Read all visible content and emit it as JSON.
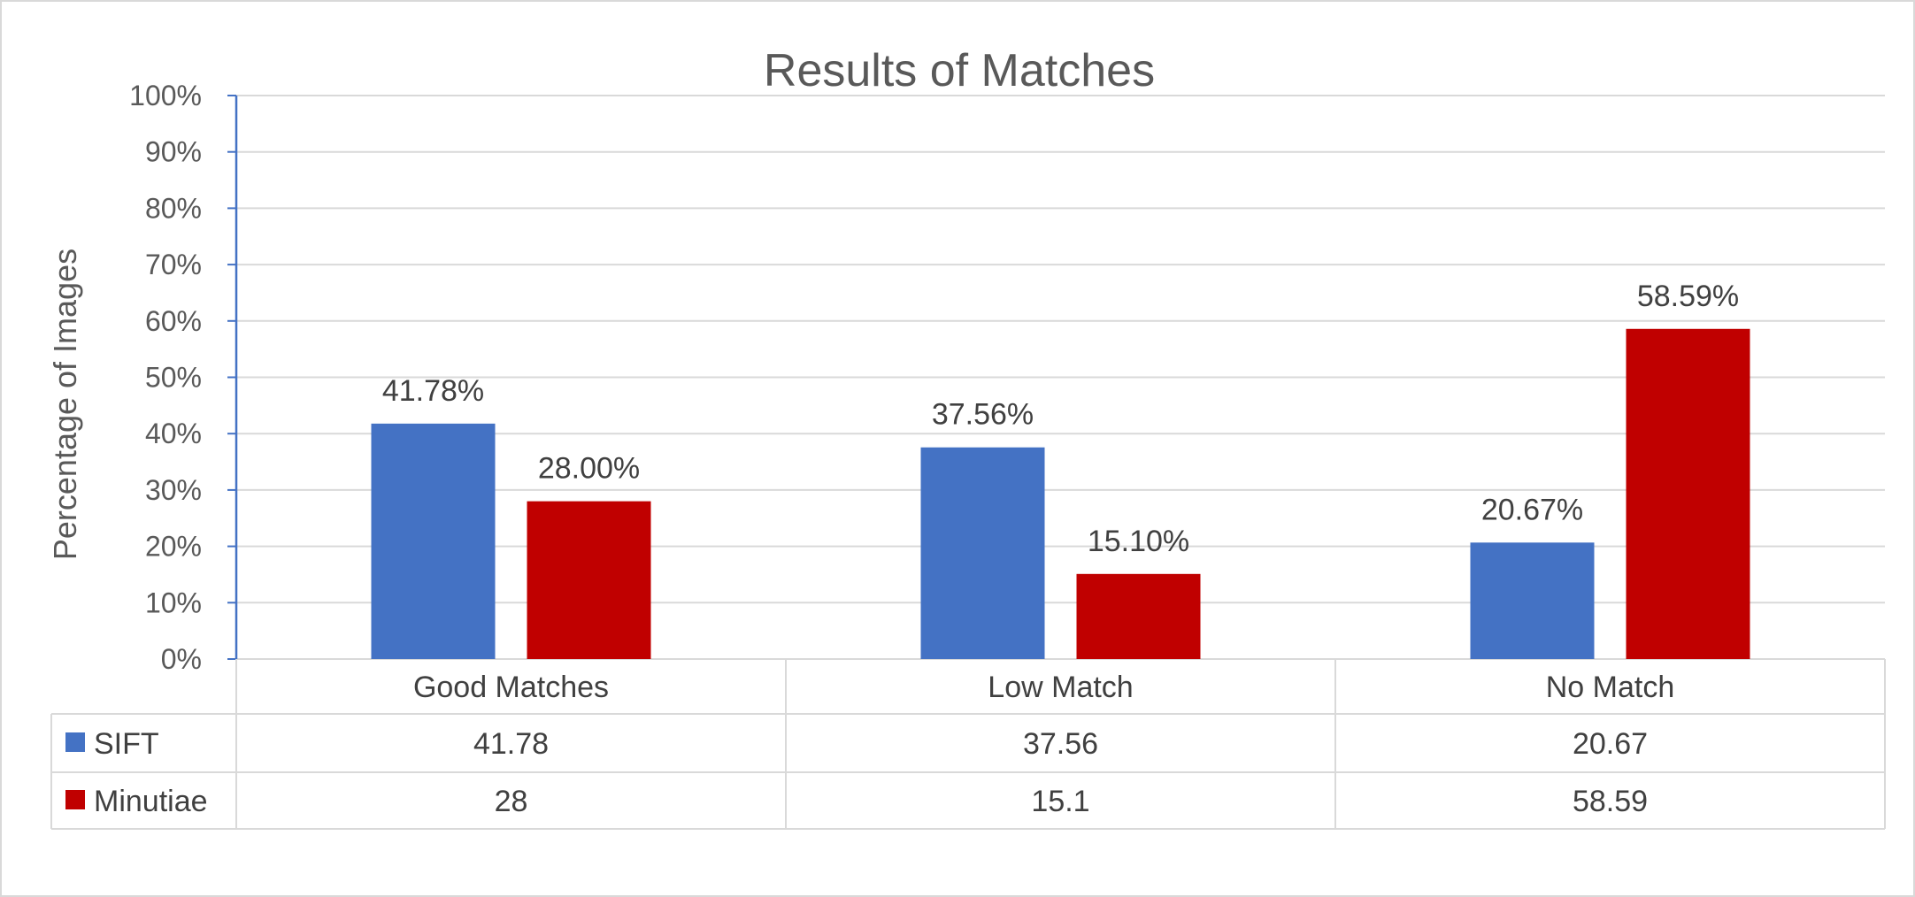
{
  "chart_data": {
    "type": "bar",
    "title": "Results of Matches",
    "ylabel": "Percentage of Images",
    "xlabel": "",
    "categories": [
      "Good Matches",
      "Low Match",
      "No Match"
    ],
    "ylim": [
      0,
      100
    ],
    "yticks": [
      "0%",
      "10%",
      "20%",
      "30%",
      "40%",
      "50%",
      "60%",
      "70%",
      "80%",
      "90%",
      "100%"
    ],
    "grid": true,
    "legend": "data-table-left",
    "series": [
      {
        "name": "SIFT",
        "color": "#4472c4",
        "values": [
          41.78,
          37.56,
          20.67
        ],
        "data_labels": [
          "41.78%",
          "37.56%",
          "20.67%"
        ],
        "table_values": [
          "41.78",
          "37.56",
          "20.67"
        ]
      },
      {
        "name": "Minutiae",
        "color": "#c00000",
        "values": [
          28.0,
          15.1,
          58.59
        ],
        "data_labels": [
          "28.00%",
          "15.10%",
          "58.59%"
        ],
        "table_values": [
          "28",
          "15.1",
          "58.59"
        ]
      }
    ]
  }
}
